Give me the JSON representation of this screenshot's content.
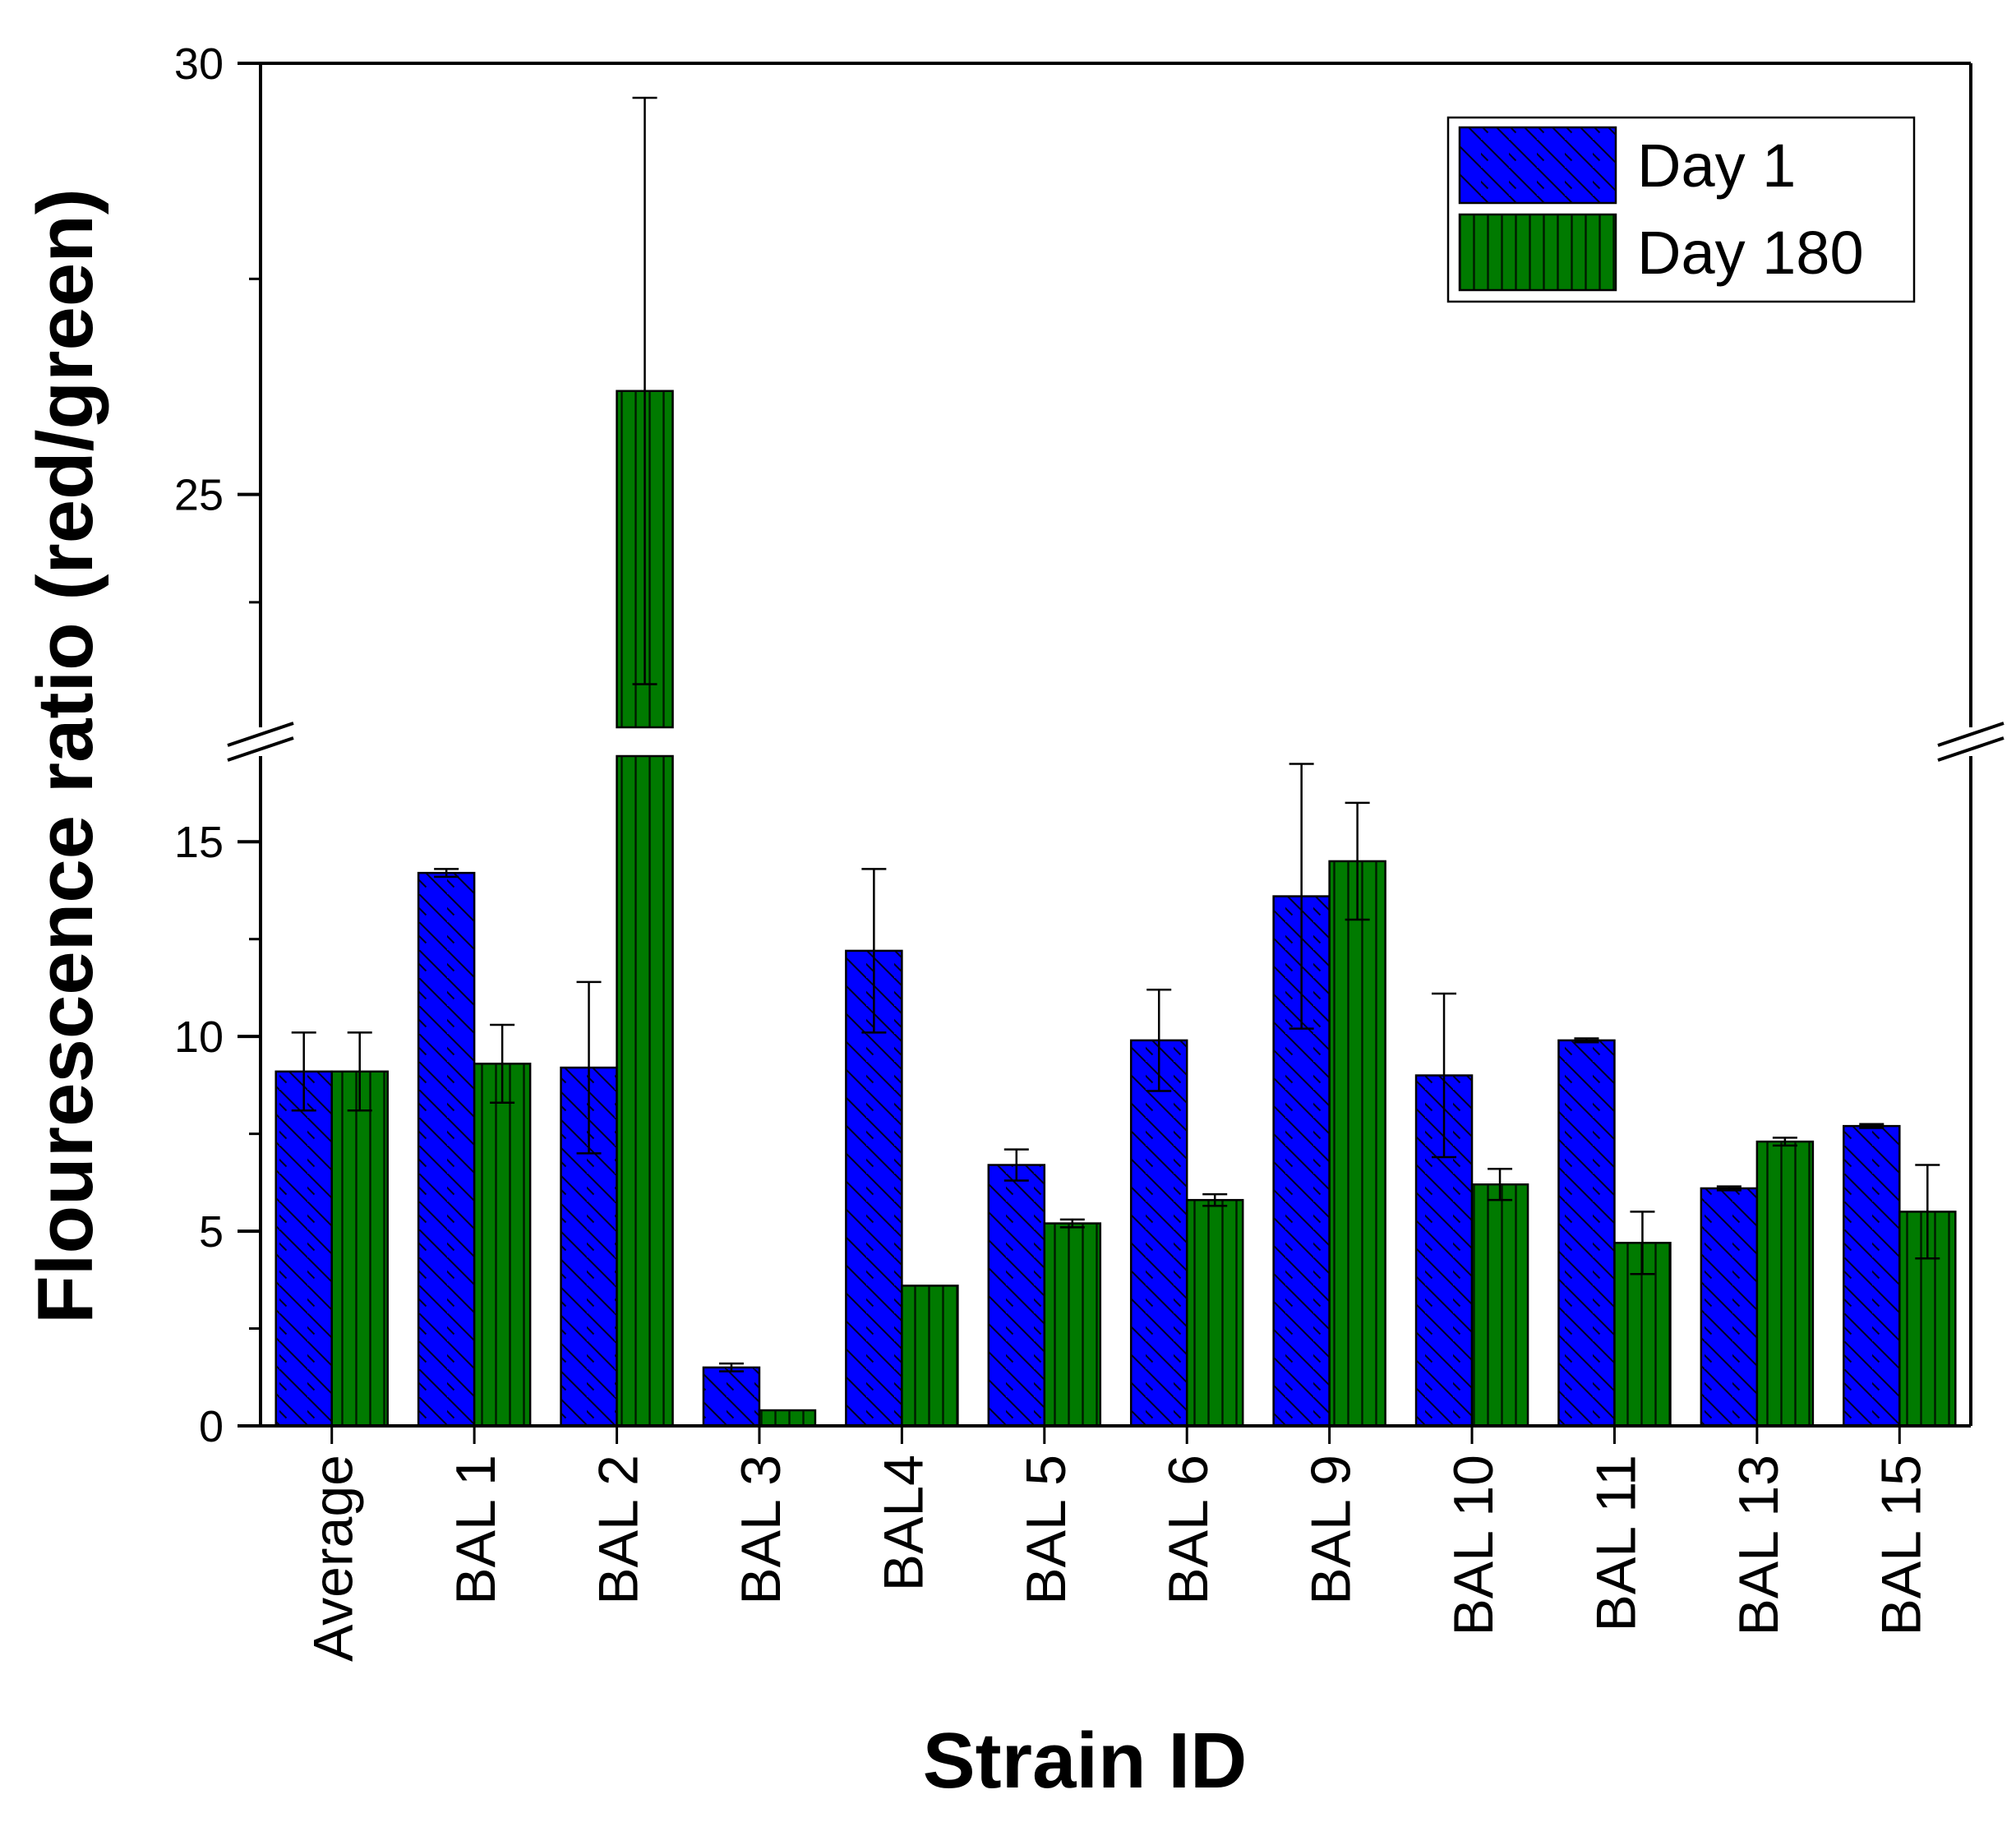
{
  "chart_data": {
    "type": "bar",
    "title": "",
    "xlabel": "Strain ID",
    "ylabel": "Flourescence ratio (red/green)",
    "axis_break": {
      "lower_range": [
        0,
        17.2
      ],
      "upper_range": [
        22.3,
        30
      ]
    },
    "y_ticks_lower": [
      0,
      5,
      10,
      15
    ],
    "y_ticks_upper": [
      25,
      30
    ],
    "y_tick_labels_lower": [
      "0",
      "5",
      "10",
      "15"
    ],
    "y_tick_labels_upper": [
      "25",
      "30"
    ],
    "categories": [
      "Average",
      "BAL 1",
      "BAL 2",
      "BAL 3",
      "BAL4",
      "BAL 5",
      "BAL 6",
      "BAL 9",
      "BAL 10",
      "BAL 11",
      "BAL 13",
      "BAL 15"
    ],
    "series": [
      {
        "name": "Day 1",
        "color": "#0000ff",
        "pattern": "diagonal-hatch",
        "values": [
          9.1,
          14.2,
          9.2,
          1.5,
          12.2,
          6.7,
          9.9,
          13.6,
          9.0,
          9.9,
          6.1,
          7.7
        ],
        "errors": [
          1.0,
          0.1,
          2.2,
          0.1,
          2.1,
          0.4,
          1.3,
          3.4,
          2.1,
          0.05,
          0.05,
          0.05
        ]
      },
      {
        "name": "Day 180",
        "color": "#007a00",
        "pattern": "vertical-hatch",
        "values": [
          9.1,
          9.3,
          26.2,
          0.4,
          3.6,
          5.2,
          5.8,
          14.5,
          6.2,
          4.7,
          7.3,
          5.5
        ],
        "errors": [
          1.0,
          1.0,
          3.4,
          0.0,
          0.0,
          0.1,
          0.15,
          1.5,
          0.4,
          0.8,
          0.1,
          1.2
        ]
      }
    ],
    "legend": {
      "placement": "top-right"
    }
  }
}
